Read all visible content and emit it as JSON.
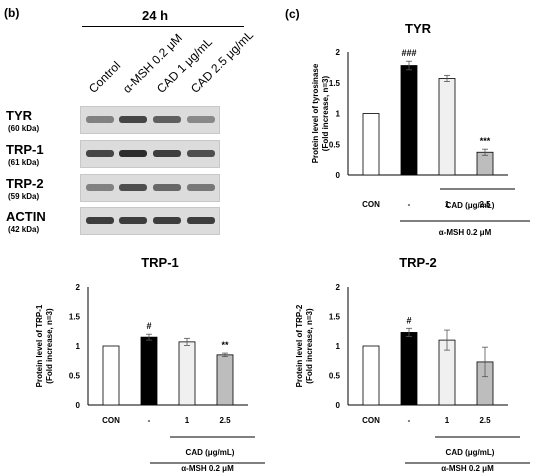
{
  "panel_b": {
    "label": "(b)",
    "timepoint": "24 h",
    "lanes": [
      "Control",
      "α-MSH 0.2 μM",
      "CAD 1 μg/mL",
      "CAD 2.5 μg/mL"
    ],
    "bands": [
      {
        "name": "TYR",
        "kda": "(60 kDa)",
        "intensity": [
          0.45,
          0.8,
          0.65,
          0.4
        ]
      },
      {
        "name": "TRP-1",
        "kda": "(61 kDa)",
        "intensity": [
          0.8,
          0.95,
          0.85,
          0.75
        ]
      },
      {
        "name": "TRP-2",
        "kda": "(59 kDa)",
        "intensity": [
          0.45,
          0.75,
          0.6,
          0.5
        ]
      },
      {
        "name": "ACTIN",
        "kda": "(42 kDa)",
        "intensity": [
          0.85,
          0.85,
          0.85,
          0.85
        ]
      }
    ]
  },
  "panel_c_label": "(c)",
  "colors": {
    "con": "#ffffff",
    "msh": "#000000",
    "cad1": "#f0f0f0",
    "cad25": "#bdbdbd"
  },
  "chart_data": [
    {
      "type": "bar",
      "title": "TYR",
      "ylabel": "Protein level of tyrosinase (Fold increase, n=3)",
      "ylabel_lines": [
        "Protein level of tyrosinase",
        "(Fold increase, n=3)"
      ],
      "categories": [
        "CON",
        "-",
        "1",
        "2.5"
      ],
      "values": [
        1.0,
        1.78,
        1.57,
        0.37
      ],
      "errors": [
        0.0,
        0.07,
        0.05,
        0.05
      ],
      "annotations": [
        "",
        "###",
        "",
        "***"
      ],
      "ylim": [
        0,
        2
      ],
      "yticks": [
        "0",
        "0.5",
        "1",
        "1.5",
        "2"
      ],
      "group_label": "CAD (μg/mL)",
      "treatment_label": "α-MSH 0.2 μM"
    },
    {
      "type": "bar",
      "title": "TRP-1",
      "ylabel": "Protein level of TRP-1 (Fold increase, n=3)",
      "ylabel_lines": [
        "Protein level of TRP-1",
        "(Fold increase, n=3)"
      ],
      "categories": [
        "CON",
        "-",
        "1",
        "2.5"
      ],
      "values": [
        1.0,
        1.15,
        1.07,
        0.85
      ],
      "errors": [
        0.0,
        0.05,
        0.06,
        0.03
      ],
      "annotations": [
        "",
        "#",
        "",
        "**"
      ],
      "ylim": [
        0,
        2
      ],
      "yticks": [
        "0",
        "0.5",
        "1",
        "1.5",
        "2"
      ],
      "group_label": "CAD (μg/mL)",
      "treatment_label": "α-MSH 0.2 μM"
    },
    {
      "type": "bar",
      "title": "TRP-2",
      "ylabel": "Protein level of TRP-2 (Fold increase, n=3)",
      "ylabel_lines": [
        "Protein level of TRP-2",
        "(Fold increase, n=3)"
      ],
      "categories": [
        "CON",
        "-",
        "1",
        "2.5"
      ],
      "values": [
        1.0,
        1.23,
        1.1,
        0.73
      ],
      "errors": [
        0.0,
        0.07,
        0.17,
        0.25
      ],
      "annotations": [
        "",
        "#",
        "",
        ""
      ],
      "ylim": [
        0,
        2
      ],
      "yticks": [
        "0",
        "0.5",
        "1",
        "1.5",
        "2"
      ],
      "group_label": "CAD (μg/mL)",
      "treatment_label": "α-MSH 0.2 μM"
    }
  ]
}
